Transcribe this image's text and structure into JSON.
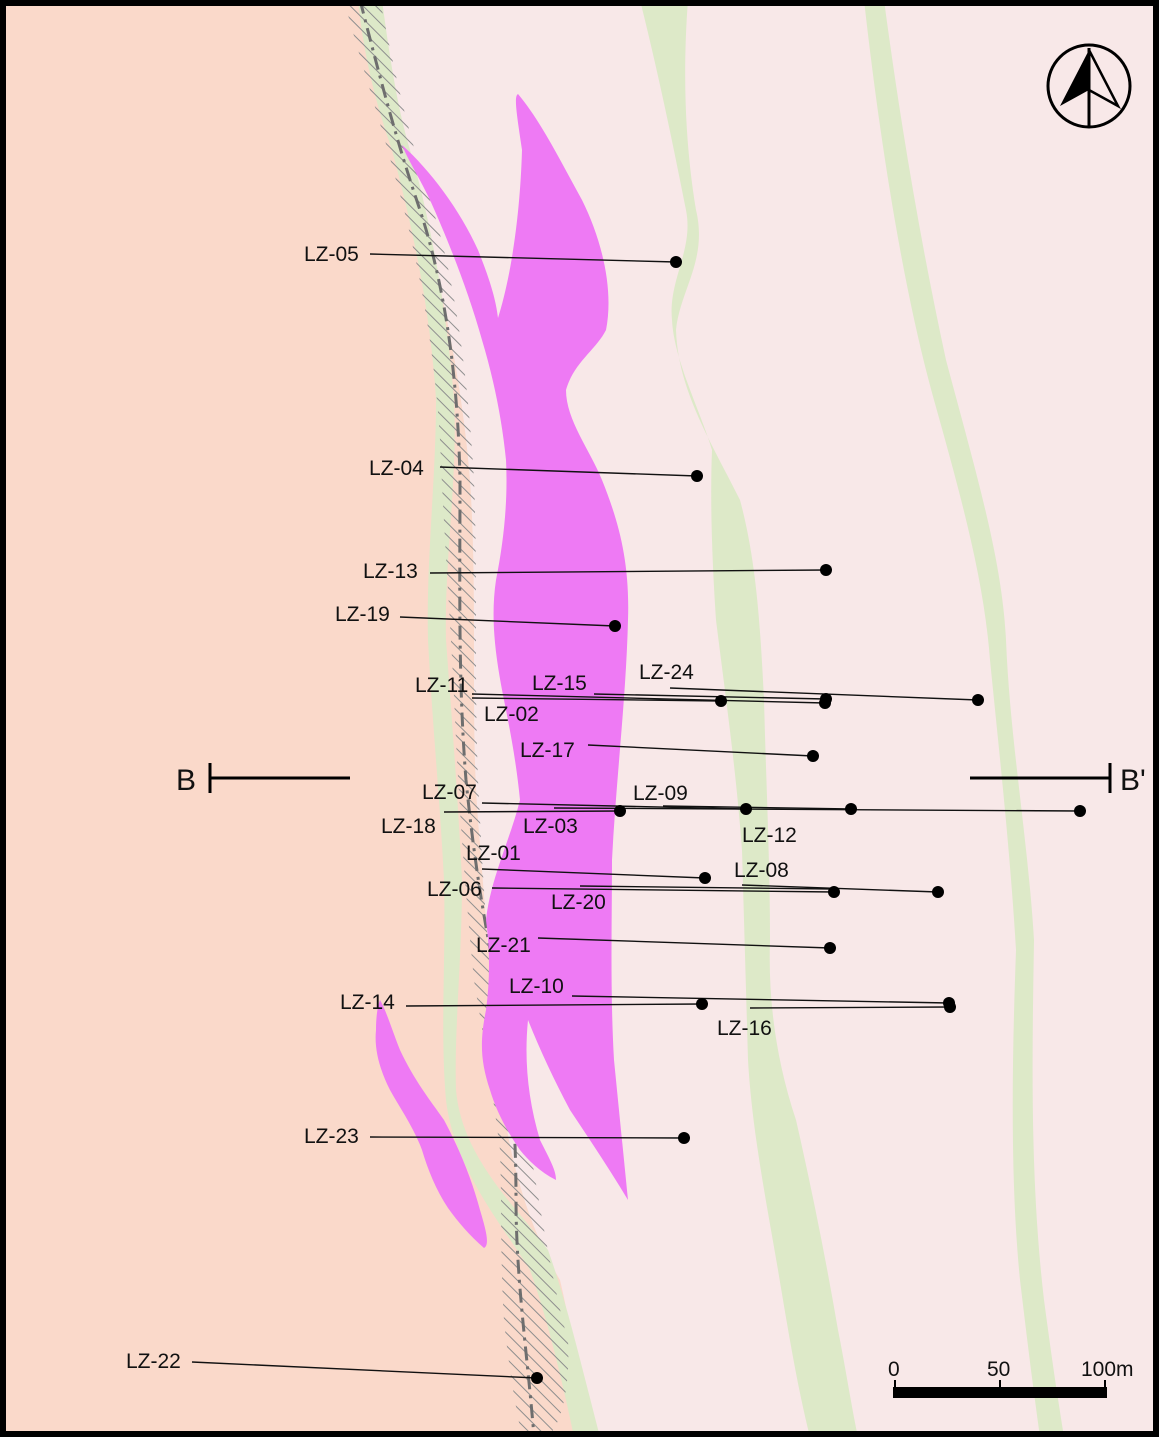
{
  "drill_holes": [
    {
      "id": "LZ-05"
    },
    {
      "id": "LZ-04"
    },
    {
      "id": "LZ-13"
    },
    {
      "id": "LZ-19"
    },
    {
      "id": "LZ-24"
    },
    {
      "id": "LZ-11"
    },
    {
      "id": "LZ-15"
    },
    {
      "id": "LZ-02"
    },
    {
      "id": "LZ-17"
    },
    {
      "id": "LZ-07"
    },
    {
      "id": "LZ-09"
    },
    {
      "id": "LZ-18"
    },
    {
      "id": "LZ-03"
    },
    {
      "id": "LZ-12"
    },
    {
      "id": "LZ-01"
    },
    {
      "id": "LZ-08"
    },
    {
      "id": "LZ-06"
    },
    {
      "id": "LZ-20"
    },
    {
      "id": "LZ-21"
    },
    {
      "id": "LZ-10"
    },
    {
      "id": "LZ-14"
    },
    {
      "id": "LZ-16"
    },
    {
      "id": "LZ-23"
    },
    {
      "id": "LZ-22"
    }
  ],
  "section_line": {
    "start_label": "B",
    "end_label": "B'"
  },
  "scale_bar": {
    "ticks": [
      "0",
      "50",
      "100m"
    ]
  },
  "north_arrow": {
    "icon": "north-arrow-icon"
  },
  "colors": {
    "left_unit": "#fad9ca",
    "right_unit": "#f8e8e8",
    "green_bands": "#dde9c8",
    "orebody": "#ee7af4",
    "hatch": "#8e8e8e",
    "fault_line": "#6e6e6e",
    "frame": "#000000"
  }
}
